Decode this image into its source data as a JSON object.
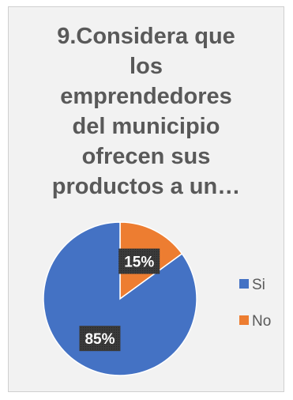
{
  "chart_data": {
    "type": "pie",
    "title_lines": [
      "9.Considera que",
      "los",
      "emprendedores",
      "del municipio",
      "ofrecen sus",
      "productos a un…"
    ],
    "categories": [
      "Si",
      "No"
    ],
    "values": [
      85,
      15
    ],
    "data_labels": [
      "85%",
      "15%"
    ],
    "colors": [
      "#4472c4",
      "#ed7d31"
    ],
    "legend_position": "right"
  }
}
